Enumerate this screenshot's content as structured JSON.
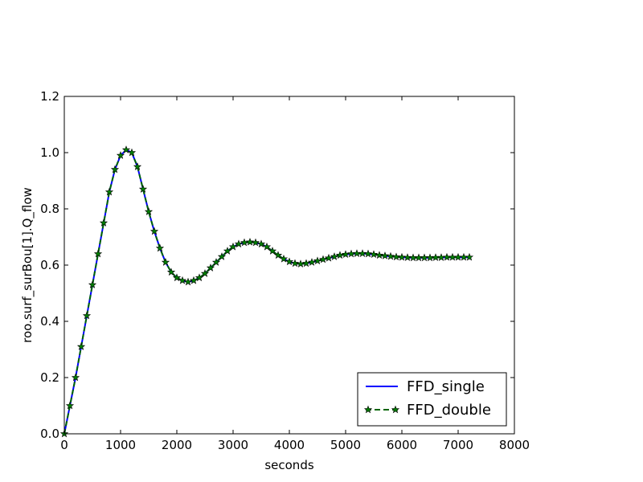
{
  "chart_data": {
    "type": "line",
    "title": "",
    "xlabel": "seconds",
    "ylabel": "roo.surf_surBou[1].Q_flow",
    "xlim": [
      0,
      8000
    ],
    "ylim": [
      0.0,
      1.2
    ],
    "xticks": [
      0,
      1000,
      2000,
      3000,
      4000,
      5000,
      6000,
      7000,
      8000
    ],
    "xtick_labels": [
      "0",
      "1000",
      "2000",
      "3000",
      "4000",
      "5000",
      "6000",
      "7000",
      "8000"
    ],
    "yticks": [
      0.0,
      0.2,
      0.4,
      0.6,
      0.8,
      1.0,
      1.2
    ],
    "ytick_labels": [
      "0.0",
      "0.2",
      "0.4",
      "0.6",
      "0.8",
      "1.0",
      "1.2"
    ],
    "grid": false,
    "legend_position": "lower-right",
    "x": [
      0,
      100,
      200,
      300,
      400,
      500,
      600,
      700,
      800,
      900,
      1000,
      1100,
      1200,
      1300,
      1400,
      1500,
      1600,
      1700,
      1800,
      1900,
      2000,
      2100,
      2200,
      2300,
      2400,
      2500,
      2600,
      2700,
      2800,
      2900,
      3000,
      3100,
      3200,
      3300,
      3400,
      3500,
      3600,
      3700,
      3800,
      3900,
      4000,
      4100,
      4200,
      4300,
      4400,
      4500,
      4600,
      4700,
      4800,
      4900,
      5000,
      5100,
      5200,
      5300,
      5400,
      5500,
      5600,
      5700,
      5800,
      5900,
      6000,
      6100,
      6200,
      6300,
      6400,
      6500,
      6600,
      6700,
      6800,
      6900,
      7000,
      7100,
      7200
    ],
    "series": [
      {
        "name": "FFD_single",
        "color": "#0000ff",
        "style": "solid",
        "values": [
          0.0,
          0.1,
          0.2,
          0.31,
          0.42,
          0.53,
          0.64,
          0.75,
          0.86,
          0.94,
          0.99,
          1.01,
          1.0,
          0.95,
          0.87,
          0.79,
          0.72,
          0.66,
          0.61,
          0.575,
          0.555,
          0.545,
          0.54,
          0.545,
          0.555,
          0.57,
          0.59,
          0.61,
          0.63,
          0.65,
          0.665,
          0.675,
          0.68,
          0.682,
          0.68,
          0.675,
          0.665,
          0.65,
          0.635,
          0.622,
          0.612,
          0.606,
          0.604,
          0.606,
          0.61,
          0.615,
          0.62,
          0.625,
          0.63,
          0.635,
          0.638,
          0.64,
          0.641,
          0.641,
          0.64,
          0.638,
          0.635,
          0.633,
          0.631,
          0.629,
          0.628,
          0.627,
          0.626,
          0.626,
          0.626,
          0.626,
          0.627,
          0.627,
          0.628,
          0.628,
          0.628,
          0.628,
          0.628
        ]
      },
      {
        "name": "FFD_double",
        "color": "#006400",
        "marker_color": "#008000",
        "style": "dashed-star",
        "values": [
          0.0,
          0.1,
          0.2,
          0.31,
          0.42,
          0.53,
          0.64,
          0.75,
          0.86,
          0.94,
          0.99,
          1.01,
          1.0,
          0.95,
          0.87,
          0.79,
          0.72,
          0.66,
          0.61,
          0.575,
          0.555,
          0.545,
          0.54,
          0.545,
          0.555,
          0.57,
          0.59,
          0.61,
          0.63,
          0.65,
          0.665,
          0.675,
          0.68,
          0.682,
          0.68,
          0.675,
          0.665,
          0.65,
          0.635,
          0.622,
          0.612,
          0.606,
          0.604,
          0.606,
          0.61,
          0.615,
          0.62,
          0.625,
          0.63,
          0.635,
          0.638,
          0.64,
          0.641,
          0.641,
          0.64,
          0.638,
          0.635,
          0.633,
          0.631,
          0.629,
          0.628,
          0.627,
          0.626,
          0.626,
          0.626,
          0.626,
          0.627,
          0.627,
          0.628,
          0.628,
          0.628,
          0.628,
          0.628
        ]
      }
    ]
  }
}
